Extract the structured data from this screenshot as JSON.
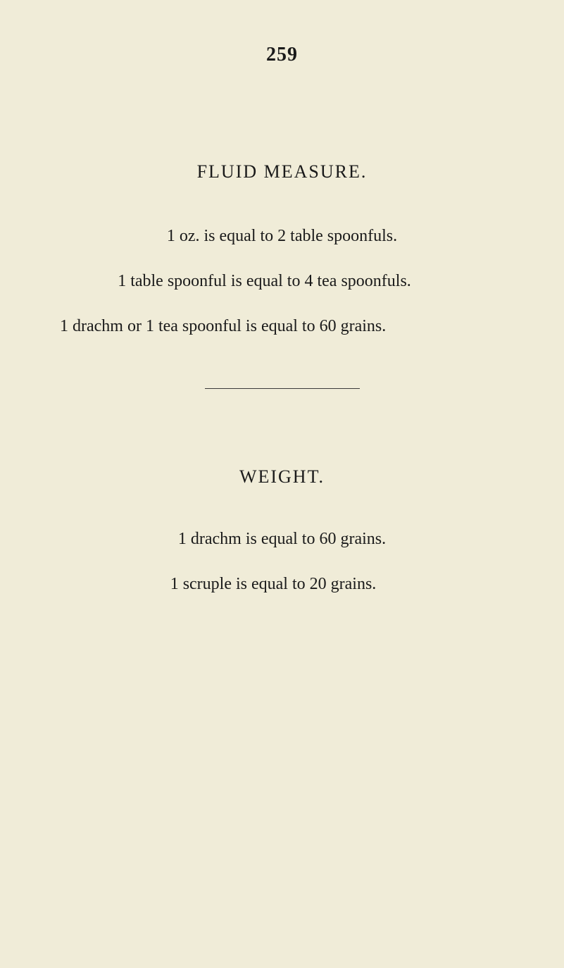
{
  "page_number": "259",
  "fluid_measure": {
    "title": "FLUID MEASURE.",
    "lines": [
      "1 oz. is equal to 2 table spoonfuls.",
      "1 table spoonful is equal to 4 tea spoonfuls.",
      "1 drachm or 1 tea spoonful is equal to 60 grains."
    ],
    "title_fontsize": 26,
    "line_fontsize": 24
  },
  "weight": {
    "title": "WEIGHT.",
    "lines": [
      "1 drachm is equal to 60 grains.",
      "1 scruple is equal to 20 grains."
    ],
    "title_fontsize": 26,
    "line_fontsize": 24
  },
  "background_color": "#f0ecd8",
  "text_color": "#1a1a1a",
  "divider_color": "#3a3a3a"
}
